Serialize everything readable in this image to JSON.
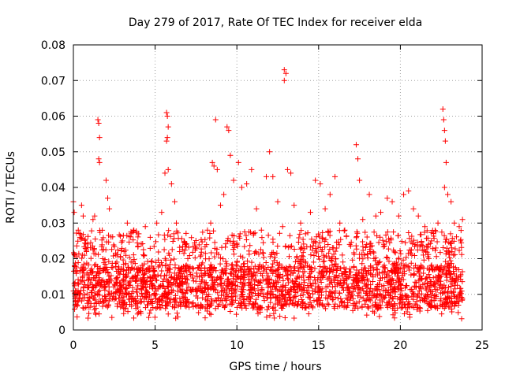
{
  "chart_data": {
    "type": "scatter",
    "title": "Day 279 of 2017, Rate Of TEC Index for receiver elda",
    "xlabel": "GPS time / hours",
    "ylabel": "ROTI / TECUs",
    "xlim": [
      0,
      25
    ],
    "ylim": [
      0,
      0.08
    ],
    "xticks": [
      0,
      5,
      10,
      15,
      20,
      25
    ],
    "xtick_labels": [
      "0",
      "5",
      "10",
      "15",
      "20",
      "25"
    ],
    "yticks": [
      0,
      0.01,
      0.02,
      0.03,
      0.04,
      0.05,
      0.06,
      0.07,
      0.08
    ],
    "ytick_labels": [
      "0",
      "0.01",
      "0.02",
      "0.03",
      "0.04",
      "0.05",
      "0.06",
      "0.07",
      "0.08"
    ],
    "grid": true,
    "marker": "+",
    "color": "#ff0000",
    "series": [
      {
        "points": [
          [
            0.0,
            0.036
          ],
          [
            0.05,
            0.033
          ],
          [
            0.1,
            0.021
          ],
          [
            0.3,
            0.028
          ],
          [
            0.4,
            0.026
          ],
          [
            0.5,
            0.035
          ],
          [
            0.6,
            0.032
          ],
          [
            0.8,
            0.022
          ],
          [
            1.2,
            0.031
          ],
          [
            1.3,
            0.032
          ],
          [
            1.5,
            0.059
          ],
          [
            1.55,
            0.058
          ],
          [
            1.6,
            0.054
          ],
          [
            1.55,
            0.048
          ],
          [
            1.6,
            0.047
          ],
          [
            1.8,
            0.02
          ],
          [
            2.0,
            0.042
          ],
          [
            2.1,
            0.037
          ],
          [
            2.2,
            0.034
          ],
          [
            2.6,
            0.021
          ],
          [
            3.0,
            0.025
          ],
          [
            3.3,
            0.03
          ],
          [
            3.7,
            0.028
          ],
          [
            4.0,
            0.027
          ],
          [
            4.4,
            0.029
          ],
          [
            4.7,
            0.026
          ],
          [
            5.1,
            0.03
          ],
          [
            5.4,
            0.033
          ],
          [
            5.6,
            0.044
          ],
          [
            5.7,
            0.061
          ],
          [
            5.75,
            0.06
          ],
          [
            5.8,
            0.057
          ],
          [
            5.7,
            0.053
          ],
          [
            5.75,
            0.054
          ],
          [
            5.8,
            0.045
          ],
          [
            6.0,
            0.041
          ],
          [
            6.2,
            0.036
          ],
          [
            6.3,
            0.03
          ],
          [
            6.5,
            0.022
          ],
          [
            7.0,
            0.02
          ],
          [
            7.5,
            0.023
          ],
          [
            7.8,
            0.021
          ],
          [
            8.2,
            0.028
          ],
          [
            8.4,
            0.03
          ],
          [
            8.5,
            0.047
          ],
          [
            8.6,
            0.046
          ],
          [
            8.7,
            0.059
          ],
          [
            8.8,
            0.045
          ],
          [
            9.0,
            0.035
          ],
          [
            9.2,
            0.038
          ],
          [
            9.4,
            0.057
          ],
          [
            9.5,
            0.056
          ],
          [
            9.6,
            0.049
          ],
          [
            9.8,
            0.042
          ],
          [
            10.1,
            0.047
          ],
          [
            10.3,
            0.04
          ],
          [
            10.6,
            0.041
          ],
          [
            10.9,
            0.045
          ],
          [
            11.2,
            0.034
          ],
          [
            11.5,
            0.028
          ],
          [
            11.8,
            0.043
          ],
          [
            12.0,
            0.05
          ],
          [
            12.2,
            0.043
          ],
          [
            12.5,
            0.036
          ],
          [
            12.8,
            0.029
          ],
          [
            12.9,
            0.073
          ],
          [
            13.0,
            0.072
          ],
          [
            12.9,
            0.07
          ],
          [
            13.1,
            0.045
          ],
          [
            13.3,
            0.044
          ],
          [
            13.5,
            0.035
          ],
          [
            13.9,
            0.03
          ],
          [
            14.2,
            0.027
          ],
          [
            14.5,
            0.033
          ],
          [
            14.8,
            0.042
          ],
          [
            15.1,
            0.041
          ],
          [
            15.4,
            0.034
          ],
          [
            15.7,
            0.038
          ],
          [
            16.0,
            0.043
          ],
          [
            16.3,
            0.03
          ],
          [
            16.6,
            0.028
          ],
          [
            16.9,
            0.024
          ],
          [
            17.3,
            0.052
          ],
          [
            17.4,
            0.048
          ],
          [
            17.5,
            0.042
          ],
          [
            17.7,
            0.031
          ],
          [
            18.1,
            0.038
          ],
          [
            18.5,
            0.032
          ],
          [
            18.8,
            0.033
          ],
          [
            19.2,
            0.037
          ],
          [
            19.5,
            0.036
          ],
          [
            19.9,
            0.032
          ],
          [
            20.2,
            0.038
          ],
          [
            20.5,
            0.039
          ],
          [
            20.8,
            0.034
          ],
          [
            21.1,
            0.032
          ],
          [
            21.5,
            0.029
          ],
          [
            21.9,
            0.025
          ],
          [
            22.3,
            0.03
          ],
          [
            22.6,
            0.062
          ],
          [
            22.65,
            0.059
          ],
          [
            22.7,
            0.056
          ],
          [
            22.75,
            0.053
          ],
          [
            22.8,
            0.047
          ],
          [
            22.7,
            0.04
          ],
          [
            22.9,
            0.038
          ],
          [
            23.1,
            0.036
          ],
          [
            23.3,
            0.03
          ],
          [
            23.6,
            0.029
          ],
          [
            23.8,
            0.031
          ]
        ]
      }
    ],
    "bulk": {
      "x_range": [
        0,
        23.8
      ],
      "y_core": [
        0.006,
        0.018
      ],
      "y_min": 0.003,
      "y_upper_typical": 0.028
    }
  }
}
